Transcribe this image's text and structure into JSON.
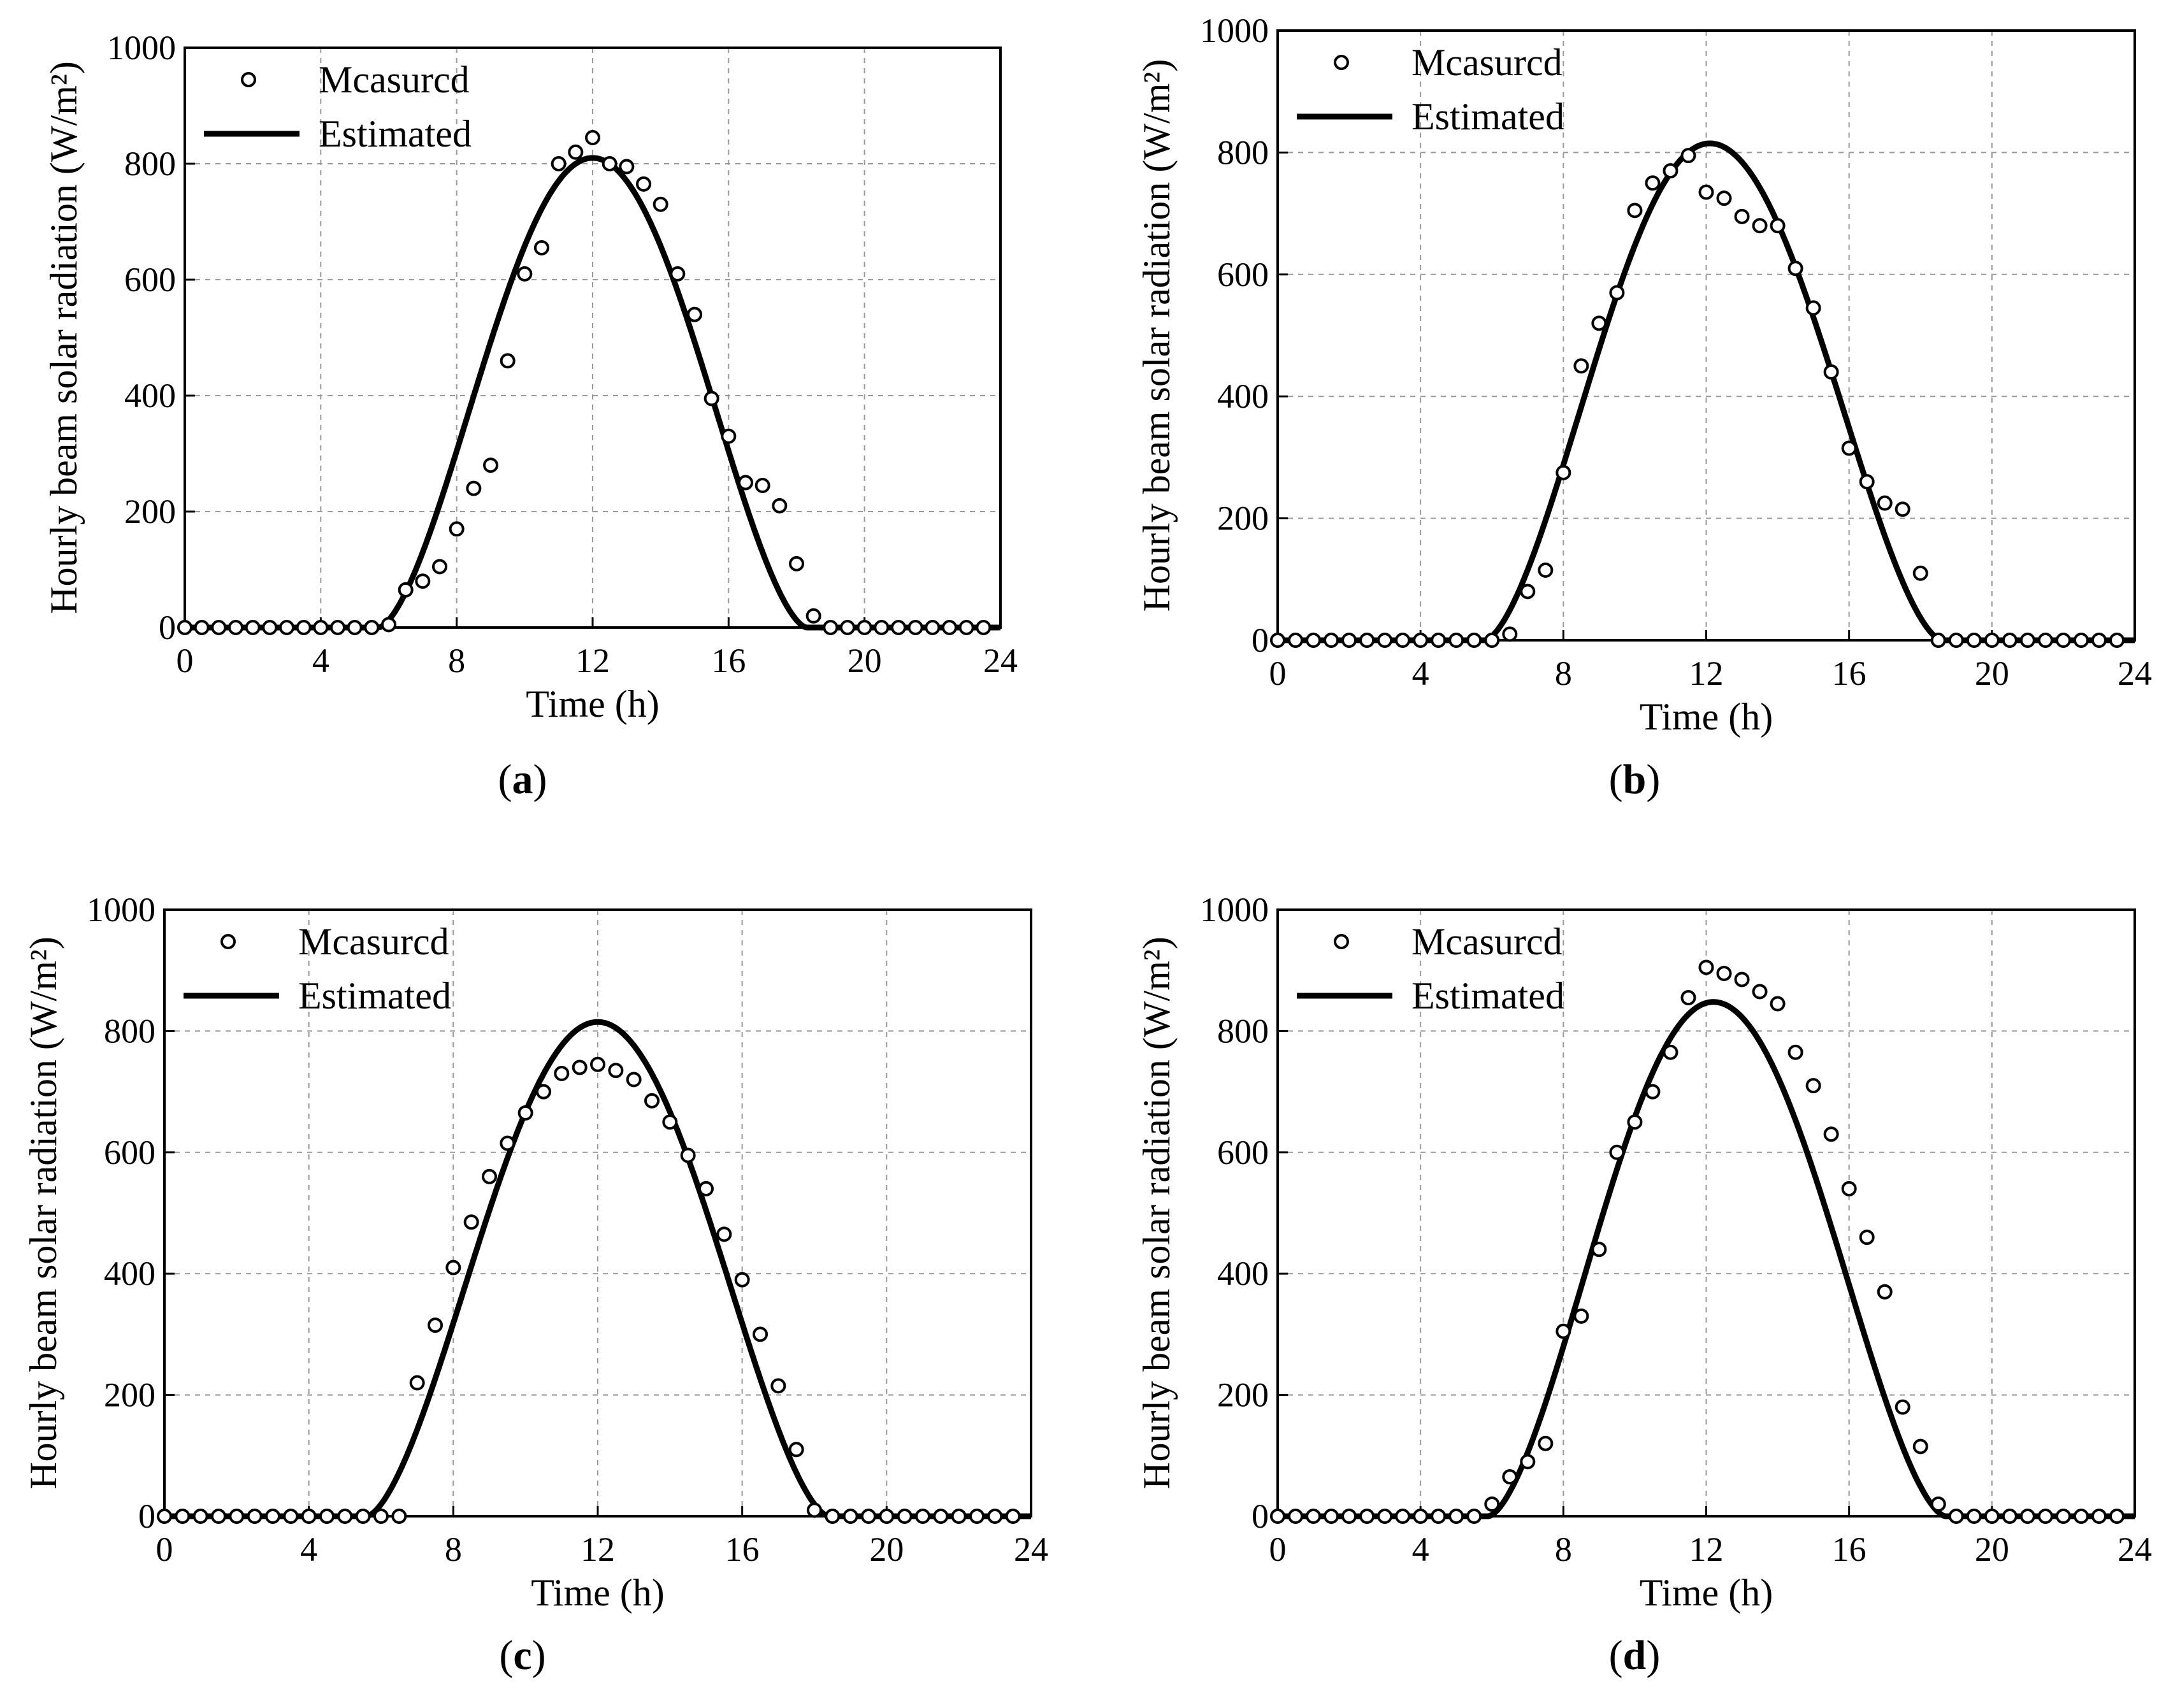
{
  "chart_data": [
    {
      "type": "line",
      "panel_label": "a",
      "xlabel": "Time (h)",
      "ylabel": "Hourly beam solar radiation (W/m²)",
      "xlim": [
        0,
        24
      ],
      "ylim": [
        0,
        1000
      ],
      "xticks": [
        0,
        4,
        8,
        12,
        16,
        20,
        24
      ],
      "yticks": [
        0,
        200,
        400,
        600,
        800,
        1000
      ],
      "grid": true,
      "legend_position": "top-left",
      "legend": [
        "Mcasurcd",
        "Estimated"
      ],
      "series": [
        {
          "name": "Mcasurcd",
          "style": "open-circle",
          "x": [
            0,
            0.5,
            1,
            1.5,
            2,
            2.5,
            3,
            3.5,
            4,
            4.5,
            5,
            5.5,
            6,
            6.5,
            7,
            7.5,
            8,
            8.5,
            9,
            9.5,
            10,
            10.5,
            11,
            11.5,
            12,
            12.5,
            13,
            13.5,
            14,
            14.5,
            15,
            15.5,
            16,
            16.5,
            17,
            17.5,
            18,
            18.5,
            19,
            19.5,
            20,
            20.5,
            21,
            21.5,
            22,
            22.5,
            23,
            23.5
          ],
          "y": [
            0,
            0,
            0,
            0,
            0,
            0,
            0,
            0,
            0,
            0,
            0,
            0,
            5,
            65,
            80,
            105,
            170,
            240,
            280,
            460,
            610,
            655,
            800,
            820,
            845,
            800,
            795,
            765,
            730,
            610,
            540,
            395,
            330,
            250,
            245,
            210,
            110,
            20,
            0,
            0,
            0,
            0,
            0,
            0,
            0,
            0,
            0,
            0
          ]
        },
        {
          "name": "Estimated",
          "style": "line",
          "peak": 810,
          "center": 12,
          "sunrise": 5.7,
          "sunset": 18.3
        }
      ]
    },
    {
      "type": "line",
      "panel_label": "b",
      "xlabel": "Time (h)",
      "ylabel": "Hourly beam solar radiation (W/m²)",
      "xlim": [
        0,
        24
      ],
      "ylim": [
        0,
        1000
      ],
      "xticks": [
        0,
        4,
        8,
        12,
        16,
        20,
        24
      ],
      "yticks": [
        0,
        200,
        400,
        600,
        800,
        1000
      ],
      "grid": true,
      "legend_position": "top-left",
      "legend": [
        "Mcasurcd",
        "Estimated"
      ],
      "series": [
        {
          "name": "Mcasurcd",
          "style": "open-circle",
          "x": [
            0,
            0.5,
            1,
            1.5,
            2,
            2.5,
            3,
            3.5,
            4,
            4.5,
            5,
            5.5,
            6,
            6.5,
            7,
            7.5,
            8,
            8.5,
            9,
            9.5,
            10,
            10.5,
            11,
            11.5,
            12,
            12.5,
            13,
            13.5,
            14,
            14.5,
            15,
            15.5,
            16,
            16.5,
            17,
            17.5,
            18,
            18.5,
            19,
            19.5,
            20,
            20.5,
            21,
            21.5,
            22,
            22.5,
            23,
            23.5
          ],
          "y": [
            0,
            0,
            0,
            0,
            0,
            0,
            0,
            0,
            0,
            0,
            0,
            0,
            0,
            10,
            80,
            115,
            275,
            450,
            520,
            570,
            705,
            750,
            770,
            795,
            735,
            725,
            695,
            680,
            680,
            610,
            545,
            440,
            315,
            260,
            225,
            215,
            110,
            0,
            0,
            0,
            0,
            0,
            0,
            0,
            0,
            0,
            0,
            0
          ]
        },
        {
          "name": "Estimated",
          "style": "line",
          "peak": 815,
          "center": 12.1,
          "sunrise": 5.8,
          "sunset": 18.6
        }
      ]
    },
    {
      "type": "line",
      "panel_label": "c",
      "xlabel": "Time (h)",
      "ylabel": "Hourly beam solar radiation (W/m²)",
      "xlim": [
        0,
        24
      ],
      "ylim": [
        0,
        1000
      ],
      "xticks": [
        0,
        4,
        8,
        12,
        16,
        20,
        24
      ],
      "yticks": [
        0,
        200,
        400,
        600,
        800,
        1000
      ],
      "grid": true,
      "legend_position": "top-left",
      "legend": [
        "Mcasurcd",
        "Estimated"
      ],
      "series": [
        {
          "name": "Mcasurcd",
          "style": "open-circle",
          "x": [
            0,
            0.5,
            1,
            1.5,
            2,
            2.5,
            3,
            3.5,
            4,
            4.5,
            5,
            5.5,
            6,
            6.5,
            7,
            7.5,
            8,
            8.5,
            9,
            9.5,
            10,
            10.5,
            11,
            11.5,
            12,
            12.5,
            13,
            13.5,
            14,
            14.5,
            15,
            15.5,
            16,
            16.5,
            17,
            17.5,
            18,
            18.5,
            19,
            19.5,
            20,
            20.5,
            21,
            21.5,
            22,
            22.5,
            23,
            23.5
          ],
          "y": [
            0,
            0,
            0,
            0,
            0,
            0,
            0,
            0,
            0,
            0,
            0,
            0,
            0,
            0,
            220,
            315,
            410,
            485,
            560,
            615,
            665,
            700,
            730,
            740,
            745,
            735,
            720,
            685,
            650,
            595,
            540,
            465,
            390,
            300,
            215,
            110,
            10,
            0,
            0,
            0,
            0,
            0,
            0,
            0,
            0,
            0,
            0,
            0
          ]
        },
        {
          "name": "Estimated",
          "style": "line",
          "peak": 815,
          "center": 12,
          "sunrise": 5.6,
          "sunset": 18.4
        }
      ]
    },
    {
      "type": "line",
      "panel_label": "d",
      "xlabel": "Time (h)",
      "ylabel": "Hourly beam solar radiation (W/m²)",
      "xlim": [
        0,
        24
      ],
      "ylim": [
        0,
        1000
      ],
      "xticks": [
        0,
        4,
        8,
        12,
        16,
        20,
        24
      ],
      "yticks": [
        0,
        200,
        400,
        600,
        800,
        1000
      ],
      "grid": true,
      "legend_position": "top-left",
      "legend": [
        "Mcasurcd",
        "Estimated"
      ],
      "series": [
        {
          "name": "Mcasurcd",
          "style": "open-circle",
          "x": [
            0,
            0.5,
            1,
            1.5,
            2,
            2.5,
            3,
            3.5,
            4,
            4.5,
            5,
            5.5,
            6,
            6.5,
            7,
            7.5,
            8,
            8.5,
            9,
            9.5,
            10,
            10.5,
            11,
            11.5,
            12,
            12.5,
            13,
            13.5,
            14,
            14.5,
            15,
            15.5,
            16,
            16.5,
            17,
            17.5,
            18,
            18.5,
            19,
            19.5,
            20,
            20.5,
            21,
            21.5,
            22,
            22.5,
            23,
            23.5
          ],
          "y": [
            0,
            0,
            0,
            0,
            0,
            0,
            0,
            0,
            0,
            0,
            0,
            0,
            20,
            65,
            90,
            120,
            305,
            330,
            440,
            600,
            650,
            700,
            765,
            855,
            905,
            895,
            885,
            865,
            845,
            765,
            710,
            630,
            540,
            460,
            370,
            180,
            115,
            20,
            0,
            0,
            0,
            0,
            0,
            0,
            0,
            0,
            0,
            0
          ]
        },
        {
          "name": "Estimated",
          "style": "line",
          "peak": 848,
          "center": 12.2,
          "sunrise": 5.9,
          "sunset": 18.7
        }
      ]
    }
  ]
}
